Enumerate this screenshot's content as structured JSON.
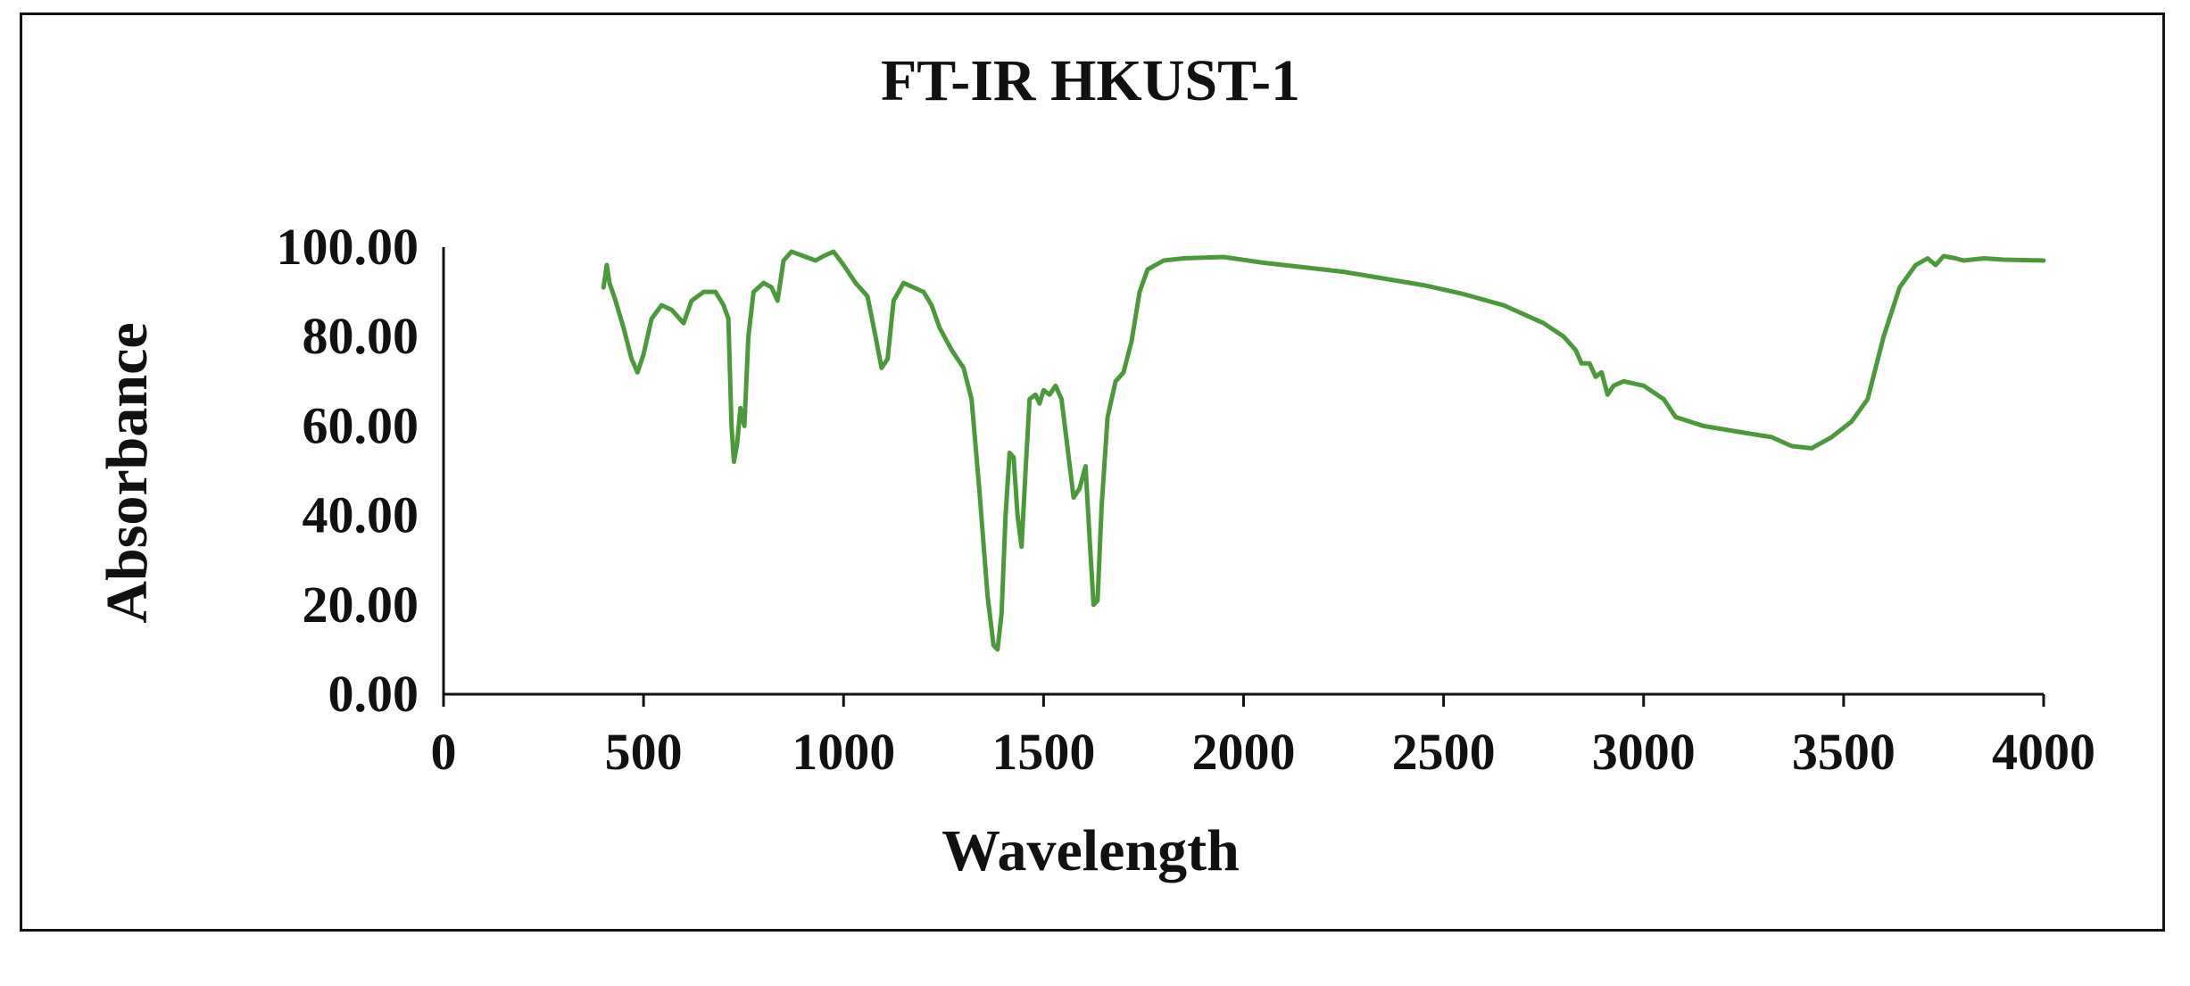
{
  "chart_data": {
    "type": "line",
    "title": "FT-IR HKUST-1",
    "xlabel": "Wavelength",
    "ylabel": "Absorbance",
    "xlim": [
      0,
      4000
    ],
    "ylim": [
      0,
      100
    ],
    "x_ticks": [
      0,
      500,
      1000,
      1500,
      2000,
      2500,
      3000,
      3500,
      4000
    ],
    "y_ticks": [
      "0.00",
      "20.00",
      "40.00",
      "60.00",
      "80.00",
      "100.00"
    ],
    "grid": false,
    "legend": "none",
    "series": [
      {
        "color": "#4a9a3a",
        "points": [
          [
            400,
            91
          ],
          [
            408,
            96
          ],
          [
            415,
            92
          ],
          [
            430,
            88
          ],
          [
            450,
            82
          ],
          [
            470,
            75
          ],
          [
            485,
            72
          ],
          [
            500,
            76
          ],
          [
            520,
            84
          ],
          [
            545,
            87
          ],
          [
            570,
            86
          ],
          [
            590,
            84
          ],
          [
            600,
            83
          ],
          [
            620,
            88
          ],
          [
            650,
            90
          ],
          [
            680,
            90
          ],
          [
            700,
            87
          ],
          [
            712,
            84
          ],
          [
            720,
            60
          ],
          [
            726,
            52
          ],
          [
            734,
            56
          ],
          [
            742,
            64
          ],
          [
            752,
            60
          ],
          [
            762,
            80
          ],
          [
            775,
            90
          ],
          [
            800,
            92
          ],
          [
            820,
            91
          ],
          [
            835,
            88
          ],
          [
            850,
            97
          ],
          [
            870,
            99
          ],
          [
            900,
            98
          ],
          [
            930,
            97
          ],
          [
            950,
            98
          ],
          [
            975,
            99
          ],
          [
            1000,
            96
          ],
          [
            1030,
            92
          ],
          [
            1060,
            89
          ],
          [
            1080,
            80
          ],
          [
            1095,
            73
          ],
          [
            1110,
            75
          ],
          [
            1125,
            88
          ],
          [
            1150,
            92
          ],
          [
            1175,
            91
          ],
          [
            1200,
            90
          ],
          [
            1220,
            87
          ],
          [
            1240,
            82
          ],
          [
            1270,
            77
          ],
          [
            1300,
            73
          ],
          [
            1320,
            66
          ],
          [
            1340,
            45
          ],
          [
            1360,
            22
          ],
          [
            1375,
            11
          ],
          [
            1385,
            10
          ],
          [
            1395,
            18
          ],
          [
            1405,
            40
          ],
          [
            1415,
            54
          ],
          [
            1425,
            53
          ],
          [
            1435,
            40
          ],
          [
            1445,
            33
          ],
          [
            1455,
            50
          ],
          [
            1465,
            66
          ],
          [
            1480,
            67
          ],
          [
            1490,
            65
          ],
          [
            1500,
            68
          ],
          [
            1515,
            67
          ],
          [
            1530,
            69
          ],
          [
            1545,
            66
          ],
          [
            1560,
            55
          ],
          [
            1575,
            44
          ],
          [
            1590,
            46
          ],
          [
            1605,
            51
          ],
          [
            1615,
            35
          ],
          [
            1625,
            20
          ],
          [
            1635,
            21
          ],
          [
            1645,
            42
          ],
          [
            1660,
            62
          ],
          [
            1680,
            70
          ],
          [
            1700,
            72
          ],
          [
            1720,
            79
          ],
          [
            1740,
            90
          ],
          [
            1760,
            95
          ],
          [
            1800,
            97
          ],
          [
            1850,
            97.5
          ],
          [
            1950,
            97.8
          ],
          [
            2050,
            96.5
          ],
          [
            2150,
            95.5
          ],
          [
            2250,
            94.5
          ],
          [
            2350,
            93
          ],
          [
            2450,
            91.5
          ],
          [
            2550,
            89.5
          ],
          [
            2650,
            87
          ],
          [
            2750,
            83
          ],
          [
            2800,
            80
          ],
          [
            2830,
            77
          ],
          [
            2845,
            74
          ],
          [
            2865,
            74
          ],
          [
            2880,
            71
          ],
          [
            2895,
            72
          ],
          [
            2910,
            67
          ],
          [
            2925,
            69
          ],
          [
            2950,
            70
          ],
          [
            3000,
            69
          ],
          [
            3050,
            66
          ],
          [
            3080,
            62
          ],
          [
            3150,
            60
          ],
          [
            3250,
            58.5
          ],
          [
            3320,
            57.5
          ],
          [
            3370,
            55.5
          ],
          [
            3420,
            55
          ],
          [
            3470,
            57.5
          ],
          [
            3520,
            61
          ],
          [
            3560,
            66
          ],
          [
            3600,
            80
          ],
          [
            3640,
            91
          ],
          [
            3680,
            96
          ],
          [
            3710,
            97.5
          ],
          [
            3730,
            96
          ],
          [
            3750,
            98
          ],
          [
            3780,
            97.5
          ],
          [
            3800,
            97
          ],
          [
            3850,
            97.5
          ],
          [
            3900,
            97.2
          ],
          [
            3950,
            97.1
          ],
          [
            4000,
            97
          ]
        ]
      }
    ]
  }
}
